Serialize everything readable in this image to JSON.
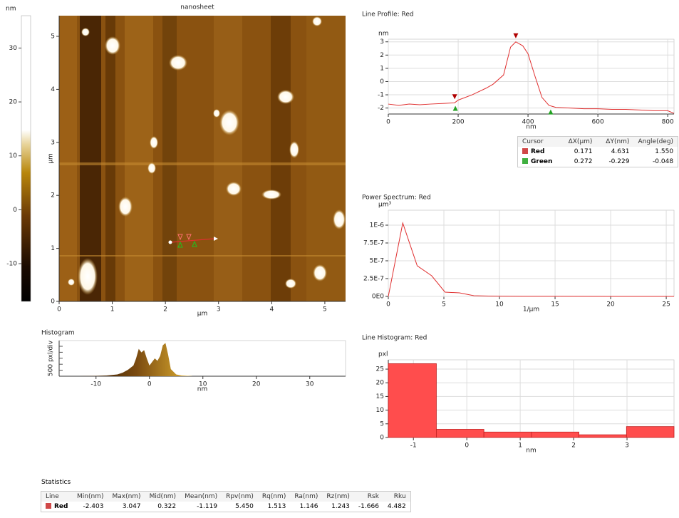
{
  "chart_data": [
    {
      "type": "colorbar",
      "unit": "nm",
      "ylim": [
        -17,
        36
      ],
      "yticks": [
        -10,
        0,
        10,
        20,
        30
      ]
    },
    {
      "type": "image",
      "title": "nanosheet",
      "xlabel": "µm",
      "ylabel": "µm",
      "xlim": [
        0,
        5.39
      ],
      "ylim": [
        0,
        5.39
      ],
      "xticks": [
        0,
        1,
        2,
        3,
        4,
        5
      ],
      "yticks": [
        0,
        1,
        2,
        3,
        4,
        5
      ]
    },
    {
      "type": "line",
      "title": "Line Profile: Red",
      "y_unit": "nm",
      "xlabel": "nm",
      "color": "#e03030",
      "grid": true,
      "xlim": [
        0,
        818
      ],
      "ylim": [
        -2.45,
        3.2
      ],
      "xticks": [
        0,
        200,
        400,
        600,
        800
      ],
      "yticks": [
        -2,
        -1,
        0,
        1,
        2,
        3
      ],
      "x": [
        0,
        30,
        60,
        90,
        120,
        160,
        190,
        200,
        240,
        280,
        300,
        330,
        350,
        365,
        385,
        400,
        420,
        440,
        460,
        480,
        520,
        560,
        600,
        640,
        680,
        720,
        760,
        800,
        818
      ],
      "values": [
        -1.7,
        -1.8,
        -1.7,
        -1.75,
        -1.7,
        -1.65,
        -1.6,
        -1.4,
        -1.0,
        -0.5,
        -0.2,
        0.5,
        2.6,
        3.0,
        2.7,
        2.1,
        0.4,
        -1.2,
        -1.8,
        -1.95,
        -2.0,
        -2.05,
        -2.05,
        -2.1,
        -2.1,
        -2.15,
        -2.2,
        -2.2,
        -2.4
      ],
      "cursors": [
        {
          "color": "#b00000",
          "x": [
            190,
            365
          ]
        },
        {
          "color": "#22a022",
          "x": [
            192,
            465
          ]
        }
      ]
    },
    {
      "type": "line",
      "title": "Power Spectrum: Red",
      "y_unit": "µm³",
      "xlabel": "1/µm",
      "color": "#e03030",
      "grid": true,
      "xlim": [
        0,
        25.7
      ],
      "ylim": [
        0,
        1.21e-06
      ],
      "xticks": [
        0,
        5,
        10,
        15,
        20,
        25
      ],
      "yticks": [
        {
          "value": 0,
          "label": "0E0"
        },
        {
          "value": 2.5e-07,
          "label": "2.5E-7"
        },
        {
          "value": 5e-07,
          "label": "5E-7"
        },
        {
          "value": 7.5e-07,
          "label": "7.5E-7"
        },
        {
          "value": 1e-06,
          "label": "1E-6"
        }
      ],
      "x": [
        0,
        1.3,
        2.6,
        3.9,
        5.1,
        6.4,
        7.7,
        9,
        10.3,
        12,
        15,
        20,
        25.7
      ],
      "values": [
        0,
        1.03e-06,
        4.3e-07,
        2.9e-07,
        6e-08,
        5e-08,
        1e-08,
        5e-09,
        2e-09,
        1e-09,
        1e-09,
        5e-10,
        0
      ]
    },
    {
      "type": "area",
      "title": "Histogram",
      "ylabel": "500 pxl/div",
      "xlabel": "nm",
      "xlim": [
        -16.9,
        36.7
      ],
      "ylim": [
        0,
        3000
      ],
      "xticks": [
        -10,
        0,
        10,
        20,
        30
      ],
      "x": [
        -13,
        -10,
        -8,
        -6,
        -5,
        -4,
        -3,
        -2.5,
        -2,
        -1.5,
        -1,
        -0.5,
        0,
        0.5,
        1,
        1.5,
        2,
        2.5,
        3,
        3.5,
        4,
        5,
        6,
        8
      ],
      "values": [
        10,
        30,
        60,
        150,
        300,
        550,
        900,
        1500,
        2300,
        2000,
        2200,
        1500,
        900,
        1200,
        1500,
        1300,
        1700,
        2600,
        2800,
        1800,
        600,
        150,
        60,
        10
      ]
    },
    {
      "type": "histogram",
      "title": "Line Histogram: Red",
      "y_unit": "pxl",
      "xlabel": "nm",
      "color": "#ff4d4d",
      "grid": true,
      "xlim": [
        -1.47,
        3.88
      ],
      "ylim": [
        0,
        28.4
      ],
      "xticks": [
        -1,
        0,
        1,
        2,
        3
      ],
      "yticks": [
        0,
        5,
        10,
        15,
        20,
        25
      ],
      "bins": [
        -1.47,
        -0.57,
        0.32,
        1.21,
        2.1,
        2.99,
        3.88
      ],
      "values": [
        27,
        3,
        2,
        2,
        1,
        4
      ]
    }
  ],
  "cursor_table": {
    "header": [
      "Cursor",
      "ΔX(µm)",
      "ΔY(nm)",
      "Angle(deg)"
    ],
    "rows": [
      [
        "Red",
        "0.171",
        "4.631",
        "1.550"
      ],
      [
        "Green",
        "0.272",
        "-0.229",
        "-0.048"
      ]
    ]
  },
  "statistics": {
    "title": "Statistics",
    "header": [
      "Line",
      "Min(nm)",
      "Max(nm)",
      "Mid(nm)",
      "Mean(nm)",
      "Rpv(nm)",
      "Rq(nm)",
      "Ra(nm)",
      "Rz(nm)",
      "Rsk",
      "Rku"
    ],
    "rows": [
      [
        "Red",
        "-2.403",
        "3.047",
        "0.322",
        "-1.119",
        "5.450",
        "1.513",
        "1.146",
        "1.243",
        "-1.666",
        "4.482"
      ]
    ]
  }
}
